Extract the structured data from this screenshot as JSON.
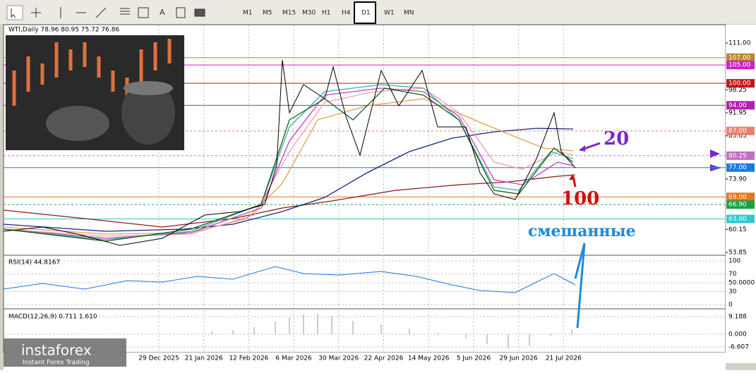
{
  "toolbar": {
    "timeframes": [
      "M1",
      "M5",
      "M15",
      "M30",
      "H1",
      "H4",
      "D1",
      "W1",
      "MN"
    ]
  },
  "chart": {
    "header": "WTI,Daily  78.96 80.95 75.72 76.86",
    "price_ticks": [
      {
        "value": 111,
        "label": "111.00"
      },
      {
        "value": 98.25,
        "label": "98.25"
      },
      {
        "value": 91.95,
        "label": "91.95"
      },
      {
        "value": 85.65,
        "label": "85.65"
      },
      {
        "value": 73.9,
        "label": "73.90"
      },
      {
        "value": 60.15,
        "label": "60.15"
      },
      {
        "value": 53.85,
        "label": "53.85"
      }
    ],
    "levels": [
      {
        "value": 107,
        "label": "107.00",
        "color": "#b8862e",
        "dashed": false
      },
      {
        "value": 105,
        "label": "105.00",
        "color": "#d020c8",
        "dashed": false
      },
      {
        "value": 100,
        "label": "100.00",
        "color": "#c01818",
        "dashed": false
      },
      {
        "value": 94,
        "label": "94.00",
        "color": "#b020b0",
        "dashed": false
      },
      {
        "value": 87,
        "label": "87.00",
        "color": "#e88070",
        "dashed": true
      },
      {
        "value": 80.25,
        "label": "80.25",
        "color": "#c070c0",
        "dashed": true
      },
      {
        "value": 77,
        "label": "77.00",
        "color": "#1e78d8",
        "dashed": false
      },
      {
        "value": 69,
        "label": "69.00",
        "color": "#e07818",
        "dashed": false
      },
      {
        "value": 66.9,
        "label": "66.90",
        "color": "#20a040",
        "dashed": true
      },
      {
        "value": 63,
        "label": "63.00",
        "color": "#30c8d0",
        "dashed": false
      }
    ],
    "dates": [
      "29 Dec 2025",
      "21 Jan 2026",
      "12 Feb 2026",
      "6 Mar 2026",
      "30 Mar 2026",
      "22 Apr 2026",
      "14 May 2026",
      "5 Jun 2026",
      "29 Jun 2026",
      "21 Jul 2026"
    ],
    "annotations": [
      "20",
      "100",
      "смешанные"
    ]
  },
  "rsi": {
    "header": "RSI(14) 44.8167",
    "ticks": [
      {
        "value": 100,
        "label": "100"
      },
      {
        "value": 70,
        "label": "70"
      },
      {
        "value": 50,
        "label": "50.0000"
      },
      {
        "value": 30,
        "label": "30"
      },
      {
        "value": 0,
        "label": "0"
      }
    ]
  },
  "macd": {
    "header": "MACD(12,26,9) 0.711 1.610",
    "ticks": [
      {
        "value": 9.188,
        "label": "9.188"
      },
      {
        "value": 0,
        "label": "0.000"
      },
      {
        "value": -6.607,
        "label": "-6.607"
      }
    ]
  },
  "logo": {
    "name": "instaforex",
    "tagline": "Instant Forex Trading"
  }
}
